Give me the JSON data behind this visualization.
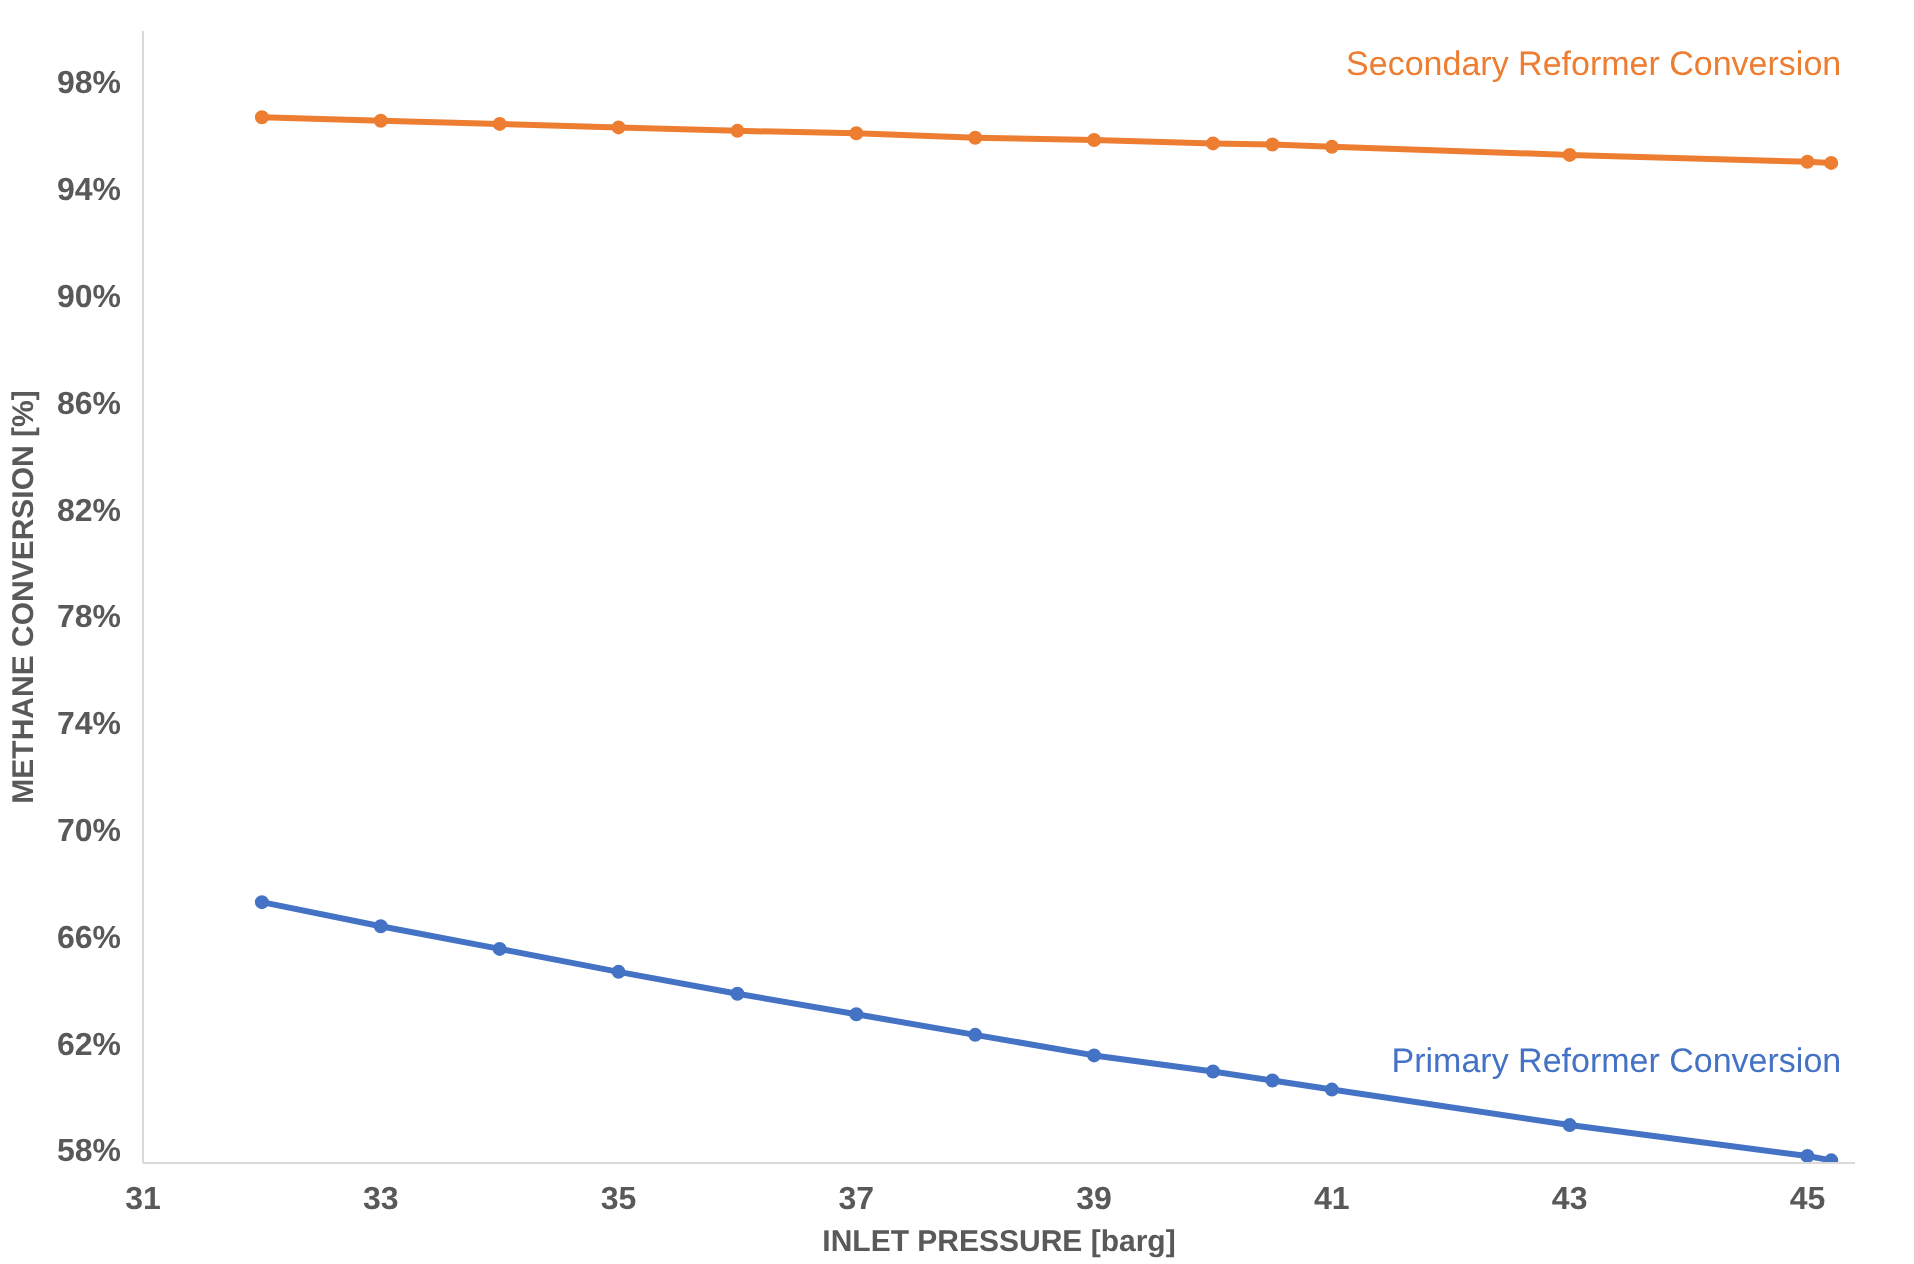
{
  "chart_data": {
    "type": "line",
    "xlabel": "INLET PRESSURE [barg]",
    "ylabel": "METHANE CONVERSION [%]",
    "x": [
      32,
      33,
      34,
      35,
      36,
      37,
      38,
      39,
      40,
      40.5,
      41,
      43,
      45,
      45.2
    ],
    "series": [
      {
        "name": "Secondary Reformer Conversion",
        "color": "#ed7d31",
        "values": [
          96.77,
          96.64,
          96.52,
          96.39,
          96.26,
          96.17,
          96.0,
          95.92,
          95.79,
          95.75,
          95.66,
          95.36,
          95.1,
          95.06
        ]
      },
      {
        "name": "Primary Reformer Conversion",
        "color": "#4472c4",
        "values": [
          67.37,
          66.47,
          65.62,
          64.76,
          63.94,
          63.17,
          62.4,
          61.63,
          61.03,
          60.69,
          60.35,
          59.02,
          57.86,
          57.7
        ]
      }
    ],
    "xlim": [
      31,
      45.4
    ],
    "ylim": [
      57.6,
      100
    ],
    "xticks": [
      31,
      33,
      35,
      37,
      39,
      41,
      43,
      45
    ],
    "yticks": [
      {
        "value": 58,
        "label": "58%"
      },
      {
        "value": 62,
        "label": "62%"
      },
      {
        "value": 66,
        "label": "66%"
      },
      {
        "value": 70,
        "label": "70%"
      },
      {
        "value": 74,
        "label": "74%"
      },
      {
        "value": 78,
        "label": "78%"
      },
      {
        "value": 82,
        "label": "82%"
      },
      {
        "value": 86,
        "label": "86%"
      },
      {
        "value": 90,
        "label": "90%"
      },
      {
        "value": 94,
        "label": "94%"
      },
      {
        "value": 98,
        "label": "98%"
      }
    ],
    "grid": false,
    "legend": false,
    "marker": "circle",
    "line_style": "solid"
  }
}
